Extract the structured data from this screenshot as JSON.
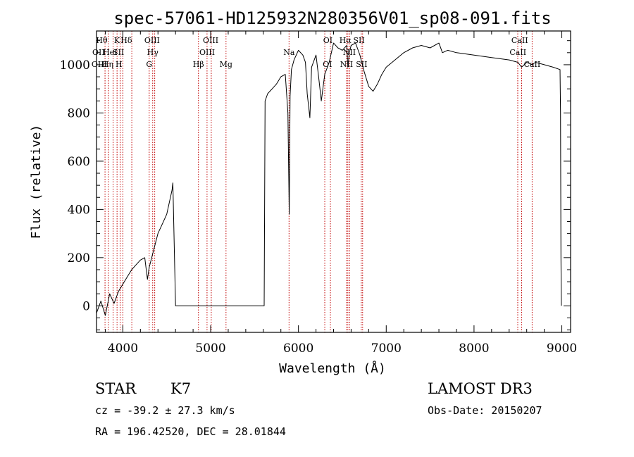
{
  "chart_data": {
    "type": "line",
    "title": "spec-57061-HD125932N280356V01_sp08-091.fits",
    "xlabel": "Wavelength (Å)",
    "ylabel": "Flux (relative)",
    "xlim": [
      3700,
      9100
    ],
    "ylim": [
      -110,
      1140
    ],
    "x_ticks": [
      4000,
      5000,
      6000,
      7000,
      8000,
      9000
    ],
    "x_tick_labels": [
      "4000",
      "5000",
      "6000",
      "7000",
      "8000",
      "9000"
    ],
    "y_ticks": [
      0,
      200,
      400,
      600,
      800,
      1000
    ],
    "y_tick_labels": [
      "0",
      "200",
      "400",
      "600",
      "800",
      "1000"
    ],
    "series": [
      {
        "name": "flux",
        "x": [
          3700,
          3750,
          3800,
          3850,
          3900,
          3950,
          4000,
          4050,
          4100,
          4150,
          4200,
          4250,
          4280,
          4300,
          4350,
          4400,
          4450,
          4500,
          4560,
          4570,
          4600,
          5000,
          5400,
          5610,
          5620,
          5650,
          5700,
          5750,
          5800,
          5850,
          5880,
          5895,
          5905,
          5920,
          5950,
          6000,
          6050,
          6080,
          6100,
          6130,
          6150,
          6200,
          6230,
          6260,
          6300,
          6350,
          6400,
          6450,
          6500,
          6550,
          6563,
          6580,
          6600,
          6650,
          6700,
          6750,
          6800,
          6850,
          6900,
          6950,
          7000,
          7100,
          7200,
          7300,
          7400,
          7500,
          7600,
          7640,
          7700,
          7800,
          8000,
          8200,
          8400,
          8500,
          8542,
          8600,
          8662,
          8700,
          8800,
          8900,
          8980,
          8985,
          8990,
          8995
        ],
        "y": [
          -30,
          20,
          -40,
          50,
          10,
          60,
          90,
          120,
          150,
          170,
          190,
          200,
          110,
          160,
          230,
          300,
          340,
          380,
          480,
          510,
          0,
          0,
          0,
          0,
          850,
          880,
          900,
          920,
          950,
          960,
          800,
          380,
          870,
          980,
          1020,
          1060,
          1040,
          1010,
          880,
          780,
          990,
          1040,
          950,
          850,
          960,
          1010,
          1090,
          1070,
          1060,
          1080,
          990,
          1050,
          1080,
          1090,
          1040,
          970,
          910,
          890,
          920,
          960,
          990,
          1020,
          1050,
          1070,
          1080,
          1070,
          1090,
          1050,
          1060,
          1050,
          1040,
          1030,
          1020,
          1010,
          990,
          1010,
          1000,
          1010,
          1000,
          990,
          980,
          800,
          200,
          0
        ]
      }
    ],
    "lines": [
      {
        "name": "H-theta",
        "x": 3797
      },
      {
        "name": "H-eta",
        "x": 3835
      },
      {
        "name": "He I",
        "x": 3889
      },
      {
        "name": "K",
        "x": 3934
      },
      {
        "name": "H",
        "x": 3969
      },
      {
        "name": "S II",
        "x": 4000
      },
      {
        "name": "H-delta",
        "x": 4102
      },
      {
        "name": "G",
        "x": 4300
      },
      {
        "name": "H-gamma",
        "x": 4340
      },
      {
        "name": "O III 4363",
        "x": 4363
      },
      {
        "name": "H-beta",
        "x": 4861
      },
      {
        "name": "O III 4959",
        "x": 4959
      },
      {
        "name": "O III 5007",
        "x": 5007
      },
      {
        "name": "Mg",
        "x": 5175
      },
      {
        "name": "Na",
        "x": 5893
      },
      {
        "name": "O I 6300",
        "x": 6300
      },
      {
        "name": "O I 6364",
        "x": 6364
      },
      {
        "name": "N II 6548",
        "x": 6548
      },
      {
        "name": "H-alpha",
        "x": 6563
      },
      {
        "name": "N II 6583",
        "x": 6583
      },
      {
        "name": "S II 6716",
        "x": 6716
      },
      {
        "name": "S II 6731",
        "x": 6731
      },
      {
        "name": "Ca II 8498",
        "x": 8498
      },
      {
        "name": "Ca II 8542",
        "x": 8542
      },
      {
        "name": "Ca II 8662",
        "x": 8662
      }
    ],
    "line_labels": [
      {
        "text": "Hθ",
        "x": 3760,
        "row": 1
      },
      {
        "text": "K",
        "x": 3933,
        "row": 1
      },
      {
        "text": "Hδ",
        "x": 4040,
        "row": 1
      },
      {
        "text": "OIII",
        "x": 4333,
        "row": 1
      },
      {
        "text": "OIII",
        "x": 5000,
        "row": 1
      },
      {
        "text": "OI",
        "x": 6335,
        "row": 1
      },
      {
        "text": "Hα",
        "x": 6535,
        "row": 1
      },
      {
        "text": "SII",
        "x": 6690,
        "row": 1
      },
      {
        "text": "CaII",
        "x": 8520,
        "row": 1
      },
      {
        "text": "OII",
        "x": 3723,
        "row": 2
      },
      {
        "text": "HeI",
        "x": 3855,
        "row": 2
      },
      {
        "text": "SII",
        "x": 3950,
        "row": 2
      },
      {
        "text": "Hγ",
        "x": 4340,
        "row": 2
      },
      {
        "text": "OIII",
        "x": 4960,
        "row": 2
      },
      {
        "text": "Na",
        "x": 5893,
        "row": 2
      },
      {
        "text": "NII",
        "x": 6580,
        "row": 2
      },
      {
        "text": "CaII",
        "x": 8500,
        "row": 2
      },
      {
        "text": "OIII",
        "x": 3731,
        "row": 3
      },
      {
        "text": "Hη",
        "x": 3828,
        "row": 3
      },
      {
        "text": "H",
        "x": 3955,
        "row": 3
      },
      {
        "text": "G",
        "x": 4300,
        "row": 3
      },
      {
        "text": "Hβ",
        "x": 4861,
        "row": 3
      },
      {
        "text": "Mg",
        "x": 5175,
        "row": 3
      },
      {
        "text": "OI",
        "x": 6330,
        "row": 3
      },
      {
        "text": "NII",
        "x": 6548,
        "row": 3
      },
      {
        "text": "SII",
        "x": 6720,
        "row": 3
      },
      {
        "text": "CaII",
        "x": 8662,
        "row": 3
      }
    ]
  },
  "info": {
    "object_class": "STAR",
    "subclass": "K7",
    "survey": "LAMOST DR3",
    "cz": "cz = -39.2 ± 27.3 km/s",
    "obs_date": "Obs-Date: 20150207",
    "coords": "RA = 196.42520, DEC =  28.01844"
  },
  "colors": {
    "axis": "#000000",
    "spectrum": "#000000",
    "line_marker": "#c00000"
  }
}
